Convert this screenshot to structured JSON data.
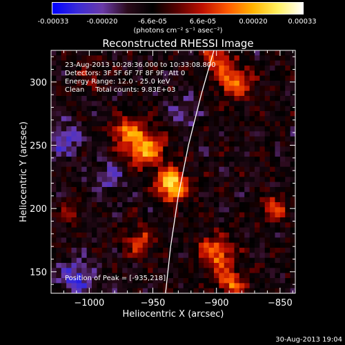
{
  "colorbar": {
    "tick_labels": [
      "-0.00033",
      "-0.00020",
      "-6.6e-05",
      "6.6e-05",
      "0.00020",
      "0.00033"
    ],
    "unit_label": "(photons cm⁻² s⁻¹ asec⁻²)",
    "colors": [
      "#0000ff",
      "#3a2bd8",
      "#6a3aa8",
      "#2a0a1a",
      "#000000",
      "#5a0000",
      "#c01000",
      "#ff5a00",
      "#ffb300",
      "#fff060",
      "#ffffff"
    ]
  },
  "chart_data": {
    "type": "heatmap",
    "title": "Reconstructed RHESSI Image",
    "xlabel": "Heliocentric X (arcsec)",
    "ylabel": "Heliocentric Y (arcsec)",
    "xlim": [
      -1030,
      -838
    ],
    "ylim": [
      133,
      325
    ],
    "x_ticks": [
      -1000,
      -950,
      -900,
      -850
    ],
    "y_ticks": [
      150,
      200,
      250,
      300
    ],
    "x_tick_labels": [
      "−1000",
      "−950",
      "−900",
      "−850"
    ],
    "y_tick_labels": [
      "150",
      "200",
      "250",
      "300"
    ],
    "annotations": [
      "23-Aug-2013 10:28:36.000 to 10:33:08.800",
      "Detectors: 3F 5F 6F 7F 8F 9F, Att 0",
      "Energy Range: 12.0 - 25.0 keV",
      "Clean     Total counts: 9.83E+03"
    ],
    "peak_label": "Position of Peak = [-935,218]",
    "peak": [
      -935,
      218
    ],
    "limb_curve": [
      [
        -940,
        133
      ],
      [
        -936,
        170
      ],
      [
        -930,
        210
      ],
      [
        -922,
        250
      ],
      [
        -912,
        290
      ],
      [
        -902,
        325
      ]
    ],
    "sources": [
      {
        "x": -935,
        "y": 218,
        "amp": 1.0,
        "s": 9
      },
      {
        "x": -957,
        "y": 248,
        "amp": 0.8,
        "s": 11
      },
      {
        "x": -972,
        "y": 262,
        "amp": 0.55,
        "s": 8
      },
      {
        "x": -885,
        "y": 300,
        "amp": 0.75,
        "s": 9
      },
      {
        "x": -900,
        "y": 320,
        "amp": 0.6,
        "s": 8
      },
      {
        "x": -900,
        "y": 165,
        "amp": 0.7,
        "s": 10
      },
      {
        "x": -888,
        "y": 140,
        "amp": 0.65,
        "s": 8
      },
      {
        "x": -855,
        "y": 200,
        "amp": 0.6,
        "s": 7
      },
      {
        "x": -960,
        "y": 175,
        "amp": 0.45,
        "s": 9
      },
      {
        "x": -1015,
        "y": 195,
        "amp": 0.35,
        "s": 7
      },
      {
        "x": -1000,
        "y": 305,
        "amp": 0.3,
        "s": 7
      },
      {
        "x": -1010,
        "y": 145,
        "amp": -0.5,
        "s": 10
      },
      {
        "x": -1020,
        "y": 255,
        "amp": -0.45,
        "s": 10
      },
      {
        "x": -985,
        "y": 225,
        "amp": -0.35,
        "s": 9
      },
      {
        "x": -925,
        "y": 275,
        "amp": -0.3,
        "s": 9
      }
    ]
  },
  "footer": {
    "timestamp": "30-Aug-2013 19:04"
  }
}
